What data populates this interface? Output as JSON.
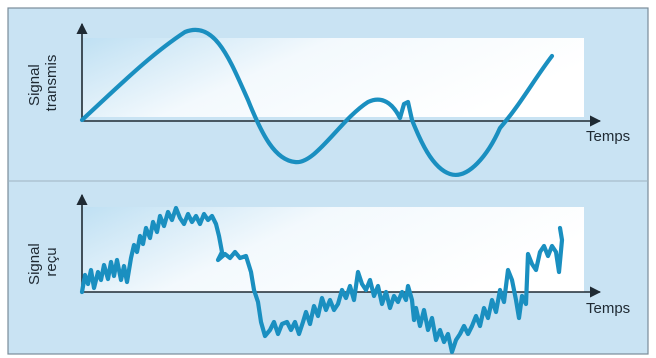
{
  "panels": [
    {
      "ylabel_lines": [
        "Signal",
        "transmis"
      ],
      "xlabel": "Temps"
    },
    {
      "ylabel_lines": [
        "Signal",
        "reçu"
      ],
      "xlabel": "Temps"
    }
  ],
  "colors": {
    "frame_fill": "#c9e3f3",
    "frame_border": "#7a8c99",
    "band_light": "#ffffff",
    "band_tint": "#bfe0f3",
    "axis": "#1f2a33",
    "signal": "#1a8fc0"
  }
}
